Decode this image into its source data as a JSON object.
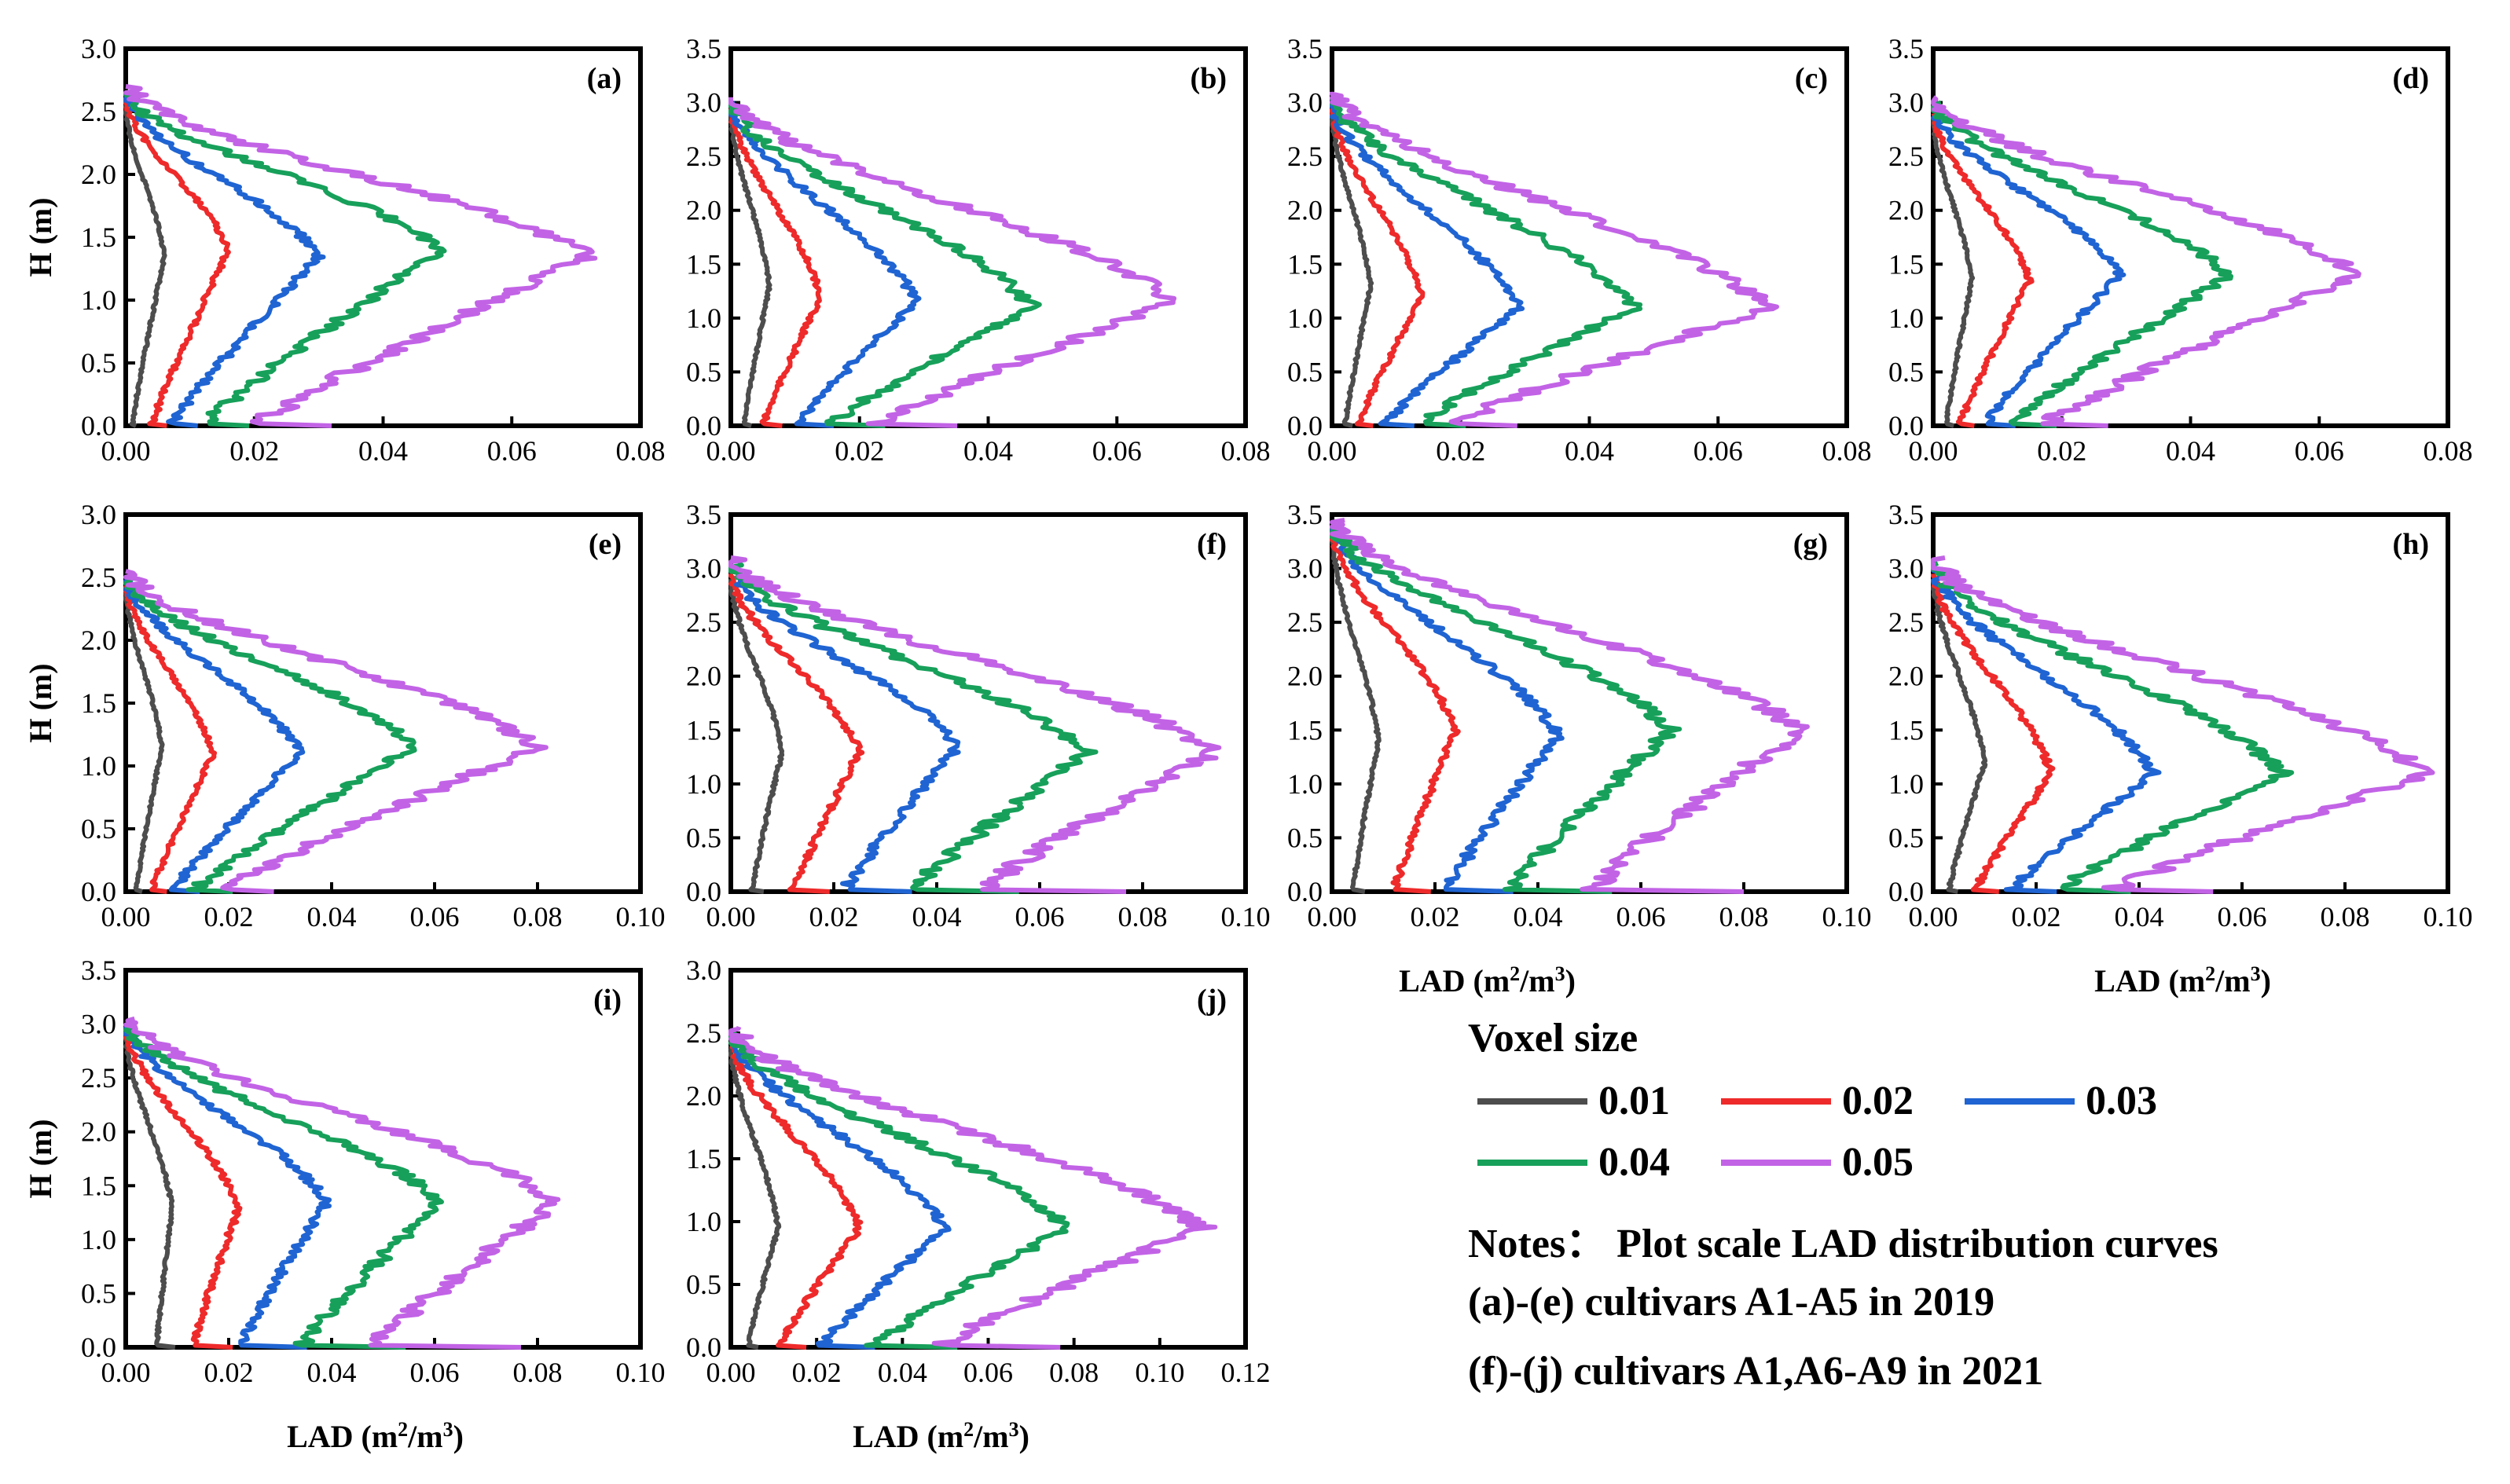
{
  "legend": {
    "title": "Voxel size",
    "items": [
      {
        "label": "0.01",
        "color": "#4d4d4d"
      },
      {
        "label": "0.02",
        "color": "#ee2a2a"
      },
      {
        "label": "0.03",
        "color": "#1f64d2"
      },
      {
        "label": "0.04",
        "color": "#17a05a"
      },
      {
        "label": "0.05",
        "color": "#c263e6"
      }
    ]
  },
  "notes": {
    "line1": "Notes： Plot scale LAD distribution curves",
    "line2": "(a)-(e) cultivars A1-A5 in 2019",
    "line3": "(f)-(j) cultivars A1,A6-A9 in 2021"
  },
  "axis_labels": {
    "ylabel": "H (m)",
    "xlabel_main": "LAD (m",
    "xlabel_sup1": "2",
    "xlabel_mid": "/m",
    "xlabel_sup2": "3",
    "xlabel_end": ")"
  },
  "chart_data": [
    {
      "type": "line",
      "title": "(a)",
      "xlabel": "",
      "ylabel": "H (m)",
      "xlim": [
        0,
        0.08
      ],
      "ylim": [
        0,
        3.0
      ],
      "xticks": [
        "0.00",
        "0.02",
        "0.04",
        "0.06",
        "0.08"
      ],
      "yticks": [
        "0.0",
        "0.5",
        "1.0",
        "1.5",
        "2.0",
        "2.5",
        "3.0"
      ],
      "series": [
        {
          "name": "0.01",
          "peak": 0.006,
          "peakH": 1.35,
          "top": 2.55,
          "base": 0.001
        },
        {
          "name": "0.02",
          "peak": 0.016,
          "peakH": 1.4,
          "top": 2.6,
          "base": 0.004
        },
        {
          "name": "0.03",
          "peak": 0.03,
          "peakH": 1.35,
          "top": 2.62,
          "base": 0.007
        },
        {
          "name": "0.04",
          "peak": 0.049,
          "peakH": 1.4,
          "top": 2.65,
          "base": 0.012
        },
        {
          "name": "0.05",
          "peak": 0.072,
          "peakH": 1.35,
          "top": 2.7,
          "base": 0.02
        }
      ]
    },
    {
      "type": "line",
      "title": "(b)",
      "xlabel": "",
      "ylabel": "",
      "xlim": [
        0,
        0.08
      ],
      "ylim": [
        0,
        3.5
      ],
      "xticks": [
        "0.00",
        "0.02",
        "0.04",
        "0.06",
        "0.08"
      ],
      "yticks": [
        "0.0",
        "0.5",
        "1.0",
        "1.5",
        "2.0",
        "2.5",
        "3.0",
        "3.5"
      ],
      "series": [
        {
          "name": "0.01",
          "peak": 0.006,
          "peakH": 1.3,
          "top": 2.9,
          "base": 0.002
        },
        {
          "name": "0.02",
          "peak": 0.014,
          "peakH": 1.2,
          "top": 2.95,
          "base": 0.005
        },
        {
          "name": "0.03",
          "peak": 0.029,
          "peakH": 1.15,
          "top": 3.0,
          "base": 0.01
        },
        {
          "name": "0.04",
          "peak": 0.047,
          "peakH": 1.1,
          "top": 3.0,
          "base": 0.015
        },
        {
          "name": "0.05",
          "peak": 0.069,
          "peakH": 1.15,
          "top": 3.05,
          "base": 0.022
        }
      ]
    },
    {
      "type": "line",
      "title": "(c)",
      "xlabel": "",
      "ylabel": "",
      "xlim": [
        0,
        0.08
      ],
      "ylim": [
        0,
        3.5
      ],
      "xticks": [
        "0.00",
        "0.02",
        "0.04",
        "0.06",
        "0.08"
      ],
      "yticks": [
        "0.0",
        "0.5",
        "1.0",
        "1.5",
        "2.0",
        "2.5",
        "3.0",
        "3.5"
      ],
      "series": [
        {
          "name": "0.01",
          "peak": 0.006,
          "peakH": 1.3,
          "top": 2.9,
          "base": 0.002
        },
        {
          "name": "0.02",
          "peak": 0.014,
          "peakH": 1.2,
          "top": 2.95,
          "base": 0.004
        },
        {
          "name": "0.03",
          "peak": 0.029,
          "peakH": 1.1,
          "top": 3.0,
          "base": 0.008
        },
        {
          "name": "0.04",
          "peak": 0.047,
          "peakH": 1.1,
          "top": 3.05,
          "base": 0.013
        },
        {
          "name": "0.05",
          "peak": 0.068,
          "peakH": 1.1,
          "top": 3.1,
          "base": 0.018
        }
      ]
    },
    {
      "type": "line",
      "title": "(d)",
      "xlabel": "",
      "ylabel": "",
      "xlim": [
        0,
        0.08
      ],
      "ylim": [
        0,
        3.5
      ],
      "xticks": [
        "0.00",
        "0.02",
        "0.04",
        "0.06",
        "0.08"
      ],
      "yticks": [
        "0.0",
        "0.5",
        "1.0",
        "1.5",
        "2.0",
        "2.5",
        "3.0",
        "3.5"
      ],
      "series": [
        {
          "name": "0.01",
          "peak": 0.006,
          "peakH": 1.35,
          "top": 2.85,
          "base": 0.002
        },
        {
          "name": "0.02",
          "peak": 0.015,
          "peakH": 1.35,
          "top": 2.9,
          "base": 0.004
        },
        {
          "name": "0.03",
          "peak": 0.029,
          "peakH": 1.4,
          "top": 2.95,
          "base": 0.008
        },
        {
          "name": "0.04",
          "peak": 0.046,
          "peakH": 1.4,
          "top": 3.0,
          "base": 0.012
        },
        {
          "name": "0.05",
          "peak": 0.066,
          "peakH": 1.4,
          "top": 3.05,
          "base": 0.017
        }
      ]
    },
    {
      "type": "line",
      "title": "(e)",
      "xlabel": "",
      "ylabel": "H (m)",
      "xlim": [
        0,
        0.1
      ],
      "ylim": [
        0,
        3.0
      ],
      "xticks": [
        "0.00",
        "0.02",
        "0.04",
        "0.06",
        "0.08",
        "0.10"
      ],
      "yticks": [
        "0.0",
        "0.5",
        "1.0",
        "1.5",
        "2.0",
        "2.5",
        "3.0"
      ],
      "series": [
        {
          "name": "0.01",
          "peak": 0.007,
          "peakH": 1.15,
          "top": 2.4,
          "base": 0.002
        },
        {
          "name": "0.02",
          "peak": 0.017,
          "peakH": 1.1,
          "top": 2.45,
          "base": 0.005
        },
        {
          "name": "0.03",
          "peak": 0.034,
          "peakH": 1.1,
          "top": 2.5,
          "base": 0.009
        },
        {
          "name": "0.04",
          "peak": 0.056,
          "peakH": 1.15,
          "top": 2.5,
          "base": 0.013
        },
        {
          "name": "0.05",
          "peak": 0.08,
          "peakH": 1.15,
          "top": 2.55,
          "base": 0.018
        }
      ]
    },
    {
      "type": "line",
      "title": "(f)",
      "xlabel": "",
      "ylabel": "",
      "xlim": [
        0,
        0.1
      ],
      "ylim": [
        0,
        3.5
      ],
      "xticks": [
        "0.00",
        "0.02",
        "0.04",
        "0.06",
        "0.08",
        "0.10"
      ],
      "yticks": [
        "0.0",
        "0.5",
        "1.0",
        "1.5",
        "2.0",
        "2.5",
        "3.0",
        "3.5"
      ],
      "series": [
        {
          "name": "0.01",
          "peak": 0.01,
          "peakH": 1.3,
          "top": 2.9,
          "base": 0.004
        },
        {
          "name": "0.02",
          "peak": 0.025,
          "peakH": 1.3,
          "top": 2.95,
          "base": 0.012
        },
        {
          "name": "0.03",
          "peak": 0.044,
          "peakH": 1.35,
          "top": 3.0,
          "base": 0.022
        },
        {
          "name": "0.04",
          "peak": 0.069,
          "peakH": 1.3,
          "top": 3.05,
          "base": 0.035
        },
        {
          "name": "0.05",
          "peak": 0.094,
          "peakH": 1.3,
          "top": 3.1,
          "base": 0.048
        }
      ]
    },
    {
      "type": "line",
      "title": "(g)",
      "xlabel": "LAD (m2/m3)",
      "ylabel": "",
      "xlim": [
        0,
        0.1
      ],
      "ylim": [
        0,
        3.5
      ],
      "xticks": [
        "0.00",
        "0.02",
        "0.04",
        "0.06",
        "0.08",
        "0.10"
      ],
      "yticks": [
        "0.0",
        "0.5",
        "1.0",
        "1.5",
        "2.0",
        "2.5",
        "3.0",
        "3.5"
      ],
      "series": [
        {
          "name": "0.01",
          "peak": 0.009,
          "peakH": 1.4,
          "top": 3.3,
          "base": 0.004
        },
        {
          "name": "0.02",
          "peak": 0.024,
          "peakH": 1.5,
          "top": 3.35,
          "base": 0.012
        },
        {
          "name": "0.03",
          "peak": 0.044,
          "peakH": 1.45,
          "top": 3.4,
          "base": 0.022
        },
        {
          "name": "0.04",
          "peak": 0.066,
          "peakH": 1.5,
          "top": 3.4,
          "base": 0.034
        },
        {
          "name": "0.05",
          "peak": 0.091,
          "peakH": 1.5,
          "top": 3.45,
          "base": 0.05
        }
      ]
    },
    {
      "type": "line",
      "title": "(h)",
      "xlabel": "LAD (m2/m3)",
      "ylabel": "",
      "xlim": [
        0,
        0.1
      ],
      "ylim": [
        0,
        3.5
      ],
      "xticks": [
        "0.00",
        "0.02",
        "0.04",
        "0.06",
        "0.08",
        "0.10"
      ],
      "yticks": [
        "0.0",
        "0.5",
        "1.0",
        "1.5",
        "2.0",
        "2.5",
        "3.0",
        "3.5"
      ],
      "series": [
        {
          "name": "0.01",
          "peak": 0.01,
          "peakH": 1.2,
          "top": 2.9,
          "base": 0.003
        },
        {
          "name": "0.02",
          "peak": 0.023,
          "peakH": 1.1,
          "top": 2.95,
          "base": 0.008
        },
        {
          "name": "0.03",
          "peak": 0.043,
          "peakH": 1.1,
          "top": 3.0,
          "base": 0.015
        },
        {
          "name": "0.04",
          "peak": 0.068,
          "peakH": 1.1,
          "top": 3.05,
          "base": 0.024
        },
        {
          "name": "0.05",
          "peak": 0.096,
          "peakH": 1.1,
          "top": 3.1,
          "base": 0.034
        }
      ]
    },
    {
      "type": "line",
      "title": "(i)",
      "xlabel": "LAD (m2/m3)",
      "ylabel": "H (m)",
      "xlim": [
        0,
        0.1
      ],
      "ylim": [
        0,
        3.5
      ],
      "xticks": [
        "0.00",
        "0.02",
        "0.04",
        "0.06",
        "0.08",
        "0.10"
      ],
      "yticks": [
        "0.0",
        "0.5",
        "1.0",
        "1.5",
        "2.0",
        "2.5",
        "3.0",
        "3.5"
      ],
      "series": [
        {
          "name": "0.01",
          "peak": 0.009,
          "peakH": 1.3,
          "top": 2.9,
          "base": 0.006
        },
        {
          "name": "0.02",
          "peak": 0.022,
          "peakH": 1.3,
          "top": 2.95,
          "base": 0.013
        },
        {
          "name": "0.03",
          "peak": 0.039,
          "peakH": 1.35,
          "top": 3.0,
          "base": 0.022
        },
        {
          "name": "0.04",
          "peak": 0.061,
          "peakH": 1.35,
          "top": 3.0,
          "base": 0.034
        },
        {
          "name": "0.05",
          "peak": 0.084,
          "peakH": 1.35,
          "top": 3.05,
          "base": 0.048
        }
      ]
    },
    {
      "type": "line",
      "title": "(j)",
      "xlabel": "LAD (m2/m3)",
      "ylabel": "",
      "xlim": [
        0,
        0.12
      ],
      "ylim": [
        0,
        3.0
      ],
      "xticks": [
        "0.00",
        "0.02",
        "0.04",
        "0.06",
        "0.08",
        "0.10",
        "0.12"
      ],
      "yticks": [
        "0.0",
        "0.5",
        "1.0",
        "1.5",
        "2.0",
        "2.5",
        "3.0"
      ],
      "series": [
        {
          "name": "0.01",
          "peak": 0.011,
          "peakH": 0.95,
          "top": 2.4,
          "base": 0.004
        },
        {
          "name": "0.02",
          "peak": 0.03,
          "peakH": 0.95,
          "top": 2.45,
          "base": 0.011
        },
        {
          "name": "0.03",
          "peak": 0.05,
          "peakH": 0.95,
          "top": 2.5,
          "base": 0.021
        },
        {
          "name": "0.04",
          "peak": 0.078,
          "peakH": 0.95,
          "top": 2.5,
          "base": 0.033
        },
        {
          "name": "0.05",
          "peak": 0.11,
          "peakH": 0.95,
          "top": 2.55,
          "base": 0.048
        }
      ]
    }
  ]
}
